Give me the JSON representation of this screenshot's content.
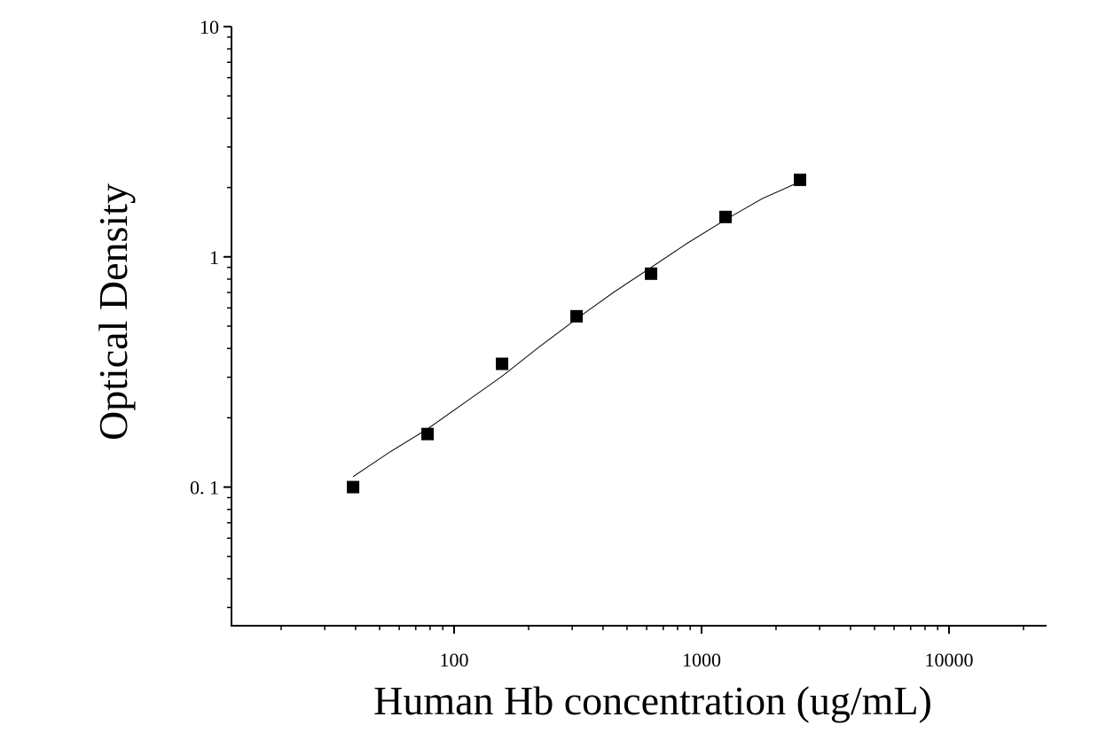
{
  "chart_data": {
    "type": "scatter",
    "x_label": "Human Hb concentration (ug/mL)",
    "y_label": "Optical Density",
    "x_log": true,
    "y_log": true,
    "xlim": [
      12.6,
      24800
    ],
    "ylim": [
      0.025,
      10
    ],
    "xticks": [
      100,
      1000,
      10000
    ],
    "yticks": [
      {
        "value": 0.1,
        "label": "0. 1"
      },
      1,
      10
    ],
    "xminorticks": [
      20,
      30,
      40,
      50,
      60,
      70,
      80,
      90,
      200,
      300,
      400,
      500,
      600,
      700,
      800,
      900,
      2000,
      3000,
      4000,
      5000,
      6000,
      7000,
      8000,
      9000,
      20000
    ],
    "yminorticks": [
      0.03,
      0.04,
      0.05,
      0.06,
      0.07,
      0.08,
      0.09,
      0.2,
      0.3,
      0.4,
      0.5,
      0.6,
      0.7,
      0.8,
      0.9,
      2,
      3,
      4,
      5,
      6,
      7,
      8,
      9
    ],
    "series": [
      {
        "color": "#000000",
        "x": [
          39.0625,
          78.125,
          156.25,
          312.5,
          625,
          1250,
          2500
        ],
        "values": [
          0.1,
          0.17,
          0.343,
          0.552,
          0.845,
          1.49,
          2.16
        ]
      }
    ],
    "fit_line": {
      "color": "#000000",
      "x": [
        39.0625,
        55,
        78.125,
        110,
        156.25,
        220,
        312.5,
        440,
        625,
        880,
        1250,
        1760,
        2500
      ],
      "values": [
        0.111,
        0.142,
        0.179,
        0.232,
        0.303,
        0.405,
        0.538,
        0.7,
        0.899,
        1.15,
        1.45,
        1.79,
        2.12
      ]
    }
  }
}
